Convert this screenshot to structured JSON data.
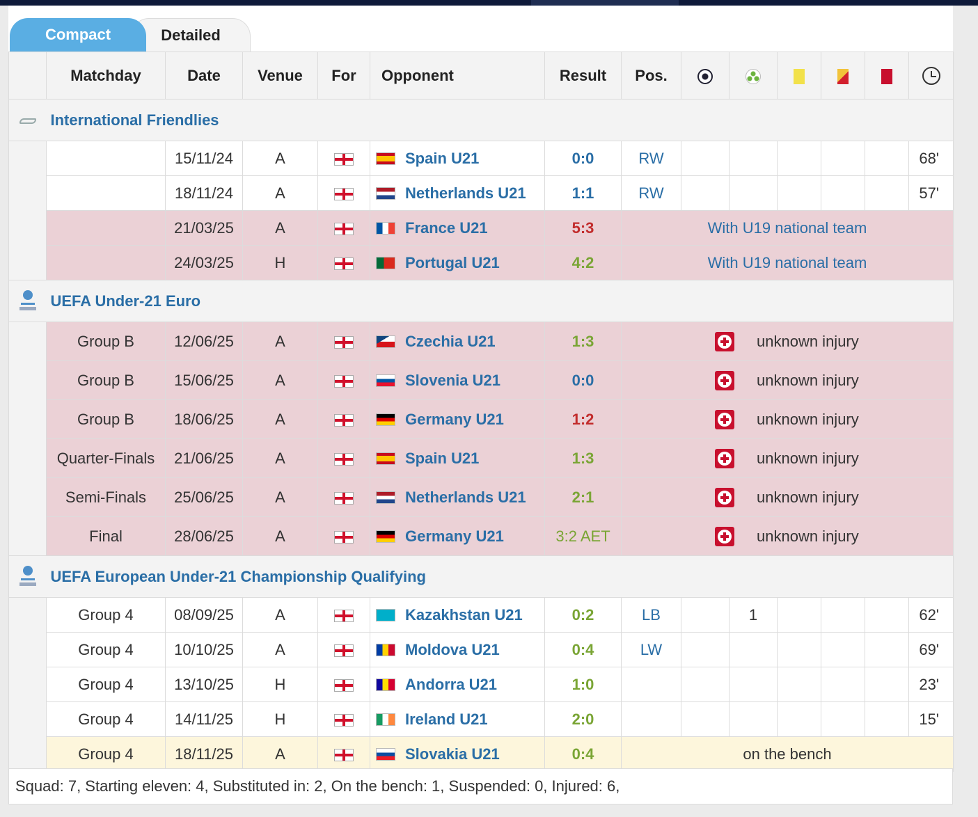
{
  "tabs": {
    "compact": "Compact",
    "detailed": "Detailed"
  },
  "headers": {
    "matchday": "Matchday",
    "date": "Date",
    "venue": "Venue",
    "for": "For",
    "opponent": "Opponent",
    "result": "Result",
    "pos": "Pos."
  },
  "header_icons": [
    "goals-icon",
    "assists-icon",
    "yellow-card-icon",
    "second-yellow-icon",
    "red-card-icon",
    "minutes-icon"
  ],
  "competitions": [
    {
      "name": "International Friendlies",
      "icon": "handshake-icon",
      "rows": [
        {
          "matchday": "",
          "date": "15/11/24",
          "venue": "A",
          "opponent": "Spain U21",
          "flag": "spain",
          "result": "0:0",
          "result_type": "draw",
          "pos": "RW",
          "goals": "",
          "assists": "",
          "minutes": "68'",
          "style": "normal"
        },
        {
          "matchday": "",
          "date": "18/11/24",
          "venue": "A",
          "opponent": "Netherlands U21",
          "flag": "netherlands",
          "result": "1:1",
          "result_type": "draw",
          "pos": "RW",
          "goals": "",
          "assists": "",
          "minutes": "57'",
          "style": "normal"
        },
        {
          "matchday": "",
          "date": "21/03/25",
          "venue": "A",
          "opponent": "France U21",
          "flag": "france",
          "result": "5:3",
          "result_type": "loss",
          "note": "With U19 national team",
          "style": "pink"
        },
        {
          "matchday": "",
          "date": "24/03/25",
          "venue": "H",
          "opponent": "Portugal U21",
          "flag": "portugal",
          "result": "4:2",
          "result_type": "win",
          "note": "With U19 national team",
          "style": "pink"
        }
      ]
    },
    {
      "name": "UEFA Under-21 Euro",
      "icon": "trophy-icon",
      "rows": [
        {
          "matchday": "Group B",
          "date": "12/06/25",
          "venue": "A",
          "opponent": "Czechia U21",
          "flag": "czechia",
          "result": "1:3",
          "result_type": "win",
          "injury": "unknown injury",
          "style": "pink"
        },
        {
          "matchday": "Group B",
          "date": "15/06/25",
          "venue": "A",
          "opponent": "Slovenia U21",
          "flag": "slovenia",
          "result": "0:0",
          "result_type": "draw",
          "injury": "unknown injury",
          "style": "pink"
        },
        {
          "matchday": "Group B",
          "date": "18/06/25",
          "venue": "A",
          "opponent": "Germany U21",
          "flag": "germany",
          "result": "1:2",
          "result_type": "loss",
          "injury": "unknown injury",
          "style": "pink"
        },
        {
          "matchday": "Quarter-Finals",
          "date": "21/06/25",
          "venue": "A",
          "opponent": "Spain U21",
          "flag": "spain",
          "result": "1:3",
          "result_type": "win",
          "injury": "unknown injury",
          "style": "pink"
        },
        {
          "matchday": "Semi-Finals",
          "date": "25/06/25",
          "venue": "A",
          "opponent": "Netherlands U21",
          "flag": "netherlands",
          "result": "2:1",
          "result_type": "win",
          "injury": "unknown injury",
          "style": "pink"
        },
        {
          "matchday": "Final",
          "date": "28/06/25",
          "venue": "A",
          "opponent": "Germany U21",
          "flag": "germany",
          "result": "3:2 AET",
          "result_type": "aet",
          "injury": "unknown injury",
          "style": "pink"
        }
      ]
    },
    {
      "name": "UEFA European Under-21 Championship Qualifying",
      "icon": "trophy-icon",
      "rows": [
        {
          "matchday": "Group 4",
          "date": "08/09/25",
          "venue": "A",
          "opponent": "Kazakhstan U21",
          "flag": "kazakhstan",
          "result": "0:2",
          "result_type": "win",
          "pos": "LB",
          "goals": "",
          "assists": "1",
          "minutes": "62'",
          "style": "normal"
        },
        {
          "matchday": "Group 4",
          "date": "10/10/25",
          "venue": "A",
          "opponent": "Moldova U21",
          "flag": "moldova",
          "result": "0:4",
          "result_type": "win",
          "pos": "LW",
          "goals": "",
          "assists": "",
          "minutes": "69'",
          "style": "normal"
        },
        {
          "matchday": "Group 4",
          "date": "13/10/25",
          "venue": "H",
          "opponent": "Andorra U21",
          "flag": "andorra",
          "result": "1:0",
          "result_type": "win",
          "pos": "",
          "goals": "",
          "assists": "",
          "minutes": "23'",
          "style": "normal"
        },
        {
          "matchday": "Group 4",
          "date": "14/11/25",
          "venue": "H",
          "opponent": "Ireland U21",
          "flag": "ireland",
          "result": "2:0",
          "result_type": "win",
          "pos": "",
          "goals": "",
          "assists": "",
          "minutes": "15'",
          "style": "normal"
        },
        {
          "matchday": "Group 4",
          "date": "18/11/25",
          "venue": "A",
          "opponent": "Slovakia U21",
          "flag": "slovakia",
          "result": "0:4",
          "result_type": "win",
          "note": "on the bench",
          "style": "cream"
        }
      ]
    }
  ],
  "footer": "Squad: 7, Starting eleven: 4, Substituted in: 2, On the bench: 1, Suspended: 0, Injured: 6,",
  "colors": {
    "accent": "#5aaee3",
    "link": "#2a6ea6",
    "win": "#7aa535",
    "loss": "#c22c2c",
    "pink_row": "#ebd1d6",
    "bench_row": "#fdf6dc"
  }
}
